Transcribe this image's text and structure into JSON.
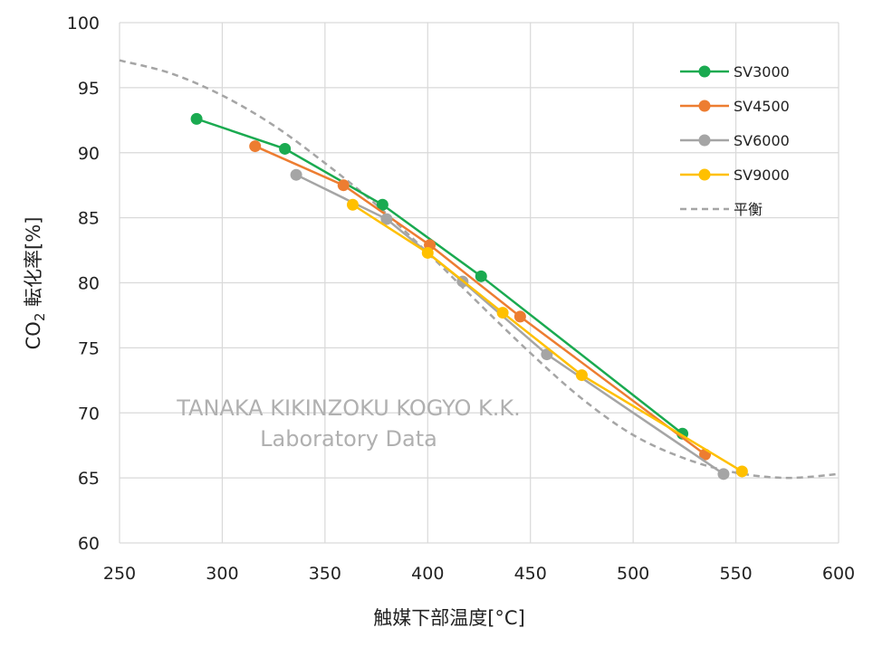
{
  "chart_data": {
    "type": "line",
    "xlabel": "触媒下部温度[°C]",
    "ylabel_main": "CO",
    "ylabel_sub": "2",
    "ylabel_tail": " 転化率[%]",
    "xlim": [
      250,
      600
    ],
    "ylim": [
      60,
      100
    ],
    "x_ticks": [
      250,
      300,
      350,
      400,
      450,
      500,
      550,
      600
    ],
    "y_ticks": [
      60,
      65,
      70,
      75,
      80,
      85,
      90,
      95,
      100
    ],
    "grid": true,
    "legend_position": "top-right",
    "watermark": [
      "TANAKA KIKINZOKU  KOGYO K.K.",
      "Laboratory Data"
    ],
    "series": [
      {
        "name": "SV3000",
        "color": "#1aaa50",
        "style": "solid",
        "markers": true,
        "points": [
          [
            287.5,
            92.6
          ],
          [
            330.5,
            90.3
          ],
          [
            378,
            86.0
          ],
          [
            426,
            80.5
          ],
          [
            524,
            68.4
          ]
        ]
      },
      {
        "name": "SV4500",
        "color": "#ed7d31",
        "style": "solid",
        "markers": true,
        "points": [
          [
            316,
            90.5
          ],
          [
            359,
            87.5
          ],
          [
            401,
            82.9
          ],
          [
            445,
            77.4
          ],
          [
            535,
            66.8
          ]
        ]
      },
      {
        "name": "SV6000",
        "color": "#a5a5a5",
        "style": "solid",
        "markers": true,
        "points": [
          [
            336,
            88.3
          ],
          [
            380,
            84.9
          ],
          [
            417,
            80.1
          ],
          [
            458,
            74.5
          ],
          [
            544,
            65.3
          ]
        ]
      },
      {
        "name": "SV9000",
        "color": "#ffc000",
        "style": "solid",
        "markers": true,
        "points": [
          [
            363.5,
            86.0
          ],
          [
            400,
            82.3
          ],
          [
            436.5,
            77.7
          ],
          [
            475,
            72.9
          ],
          [
            553,
            65.5
          ]
        ]
      },
      {
        "name": "平衡",
        "color": "#a5a5a5",
        "style": "dashed",
        "markers": false,
        "points": [
          [
            250,
            97.1
          ],
          [
            275,
            96.1
          ],
          [
            300,
            94.4
          ],
          [
            325,
            92.1
          ],
          [
            350,
            89.2
          ],
          [
            375,
            86.0
          ],
          [
            400,
            82.3
          ],
          [
            425,
            78.4
          ],
          [
            450,
            74.6
          ],
          [
            475,
            71.1
          ],
          [
            500,
            68.3
          ],
          [
            525,
            66.5
          ],
          [
            550,
            65.4
          ],
          [
            575,
            65.0
          ],
          [
            600,
            65.3
          ]
        ]
      }
    ]
  }
}
